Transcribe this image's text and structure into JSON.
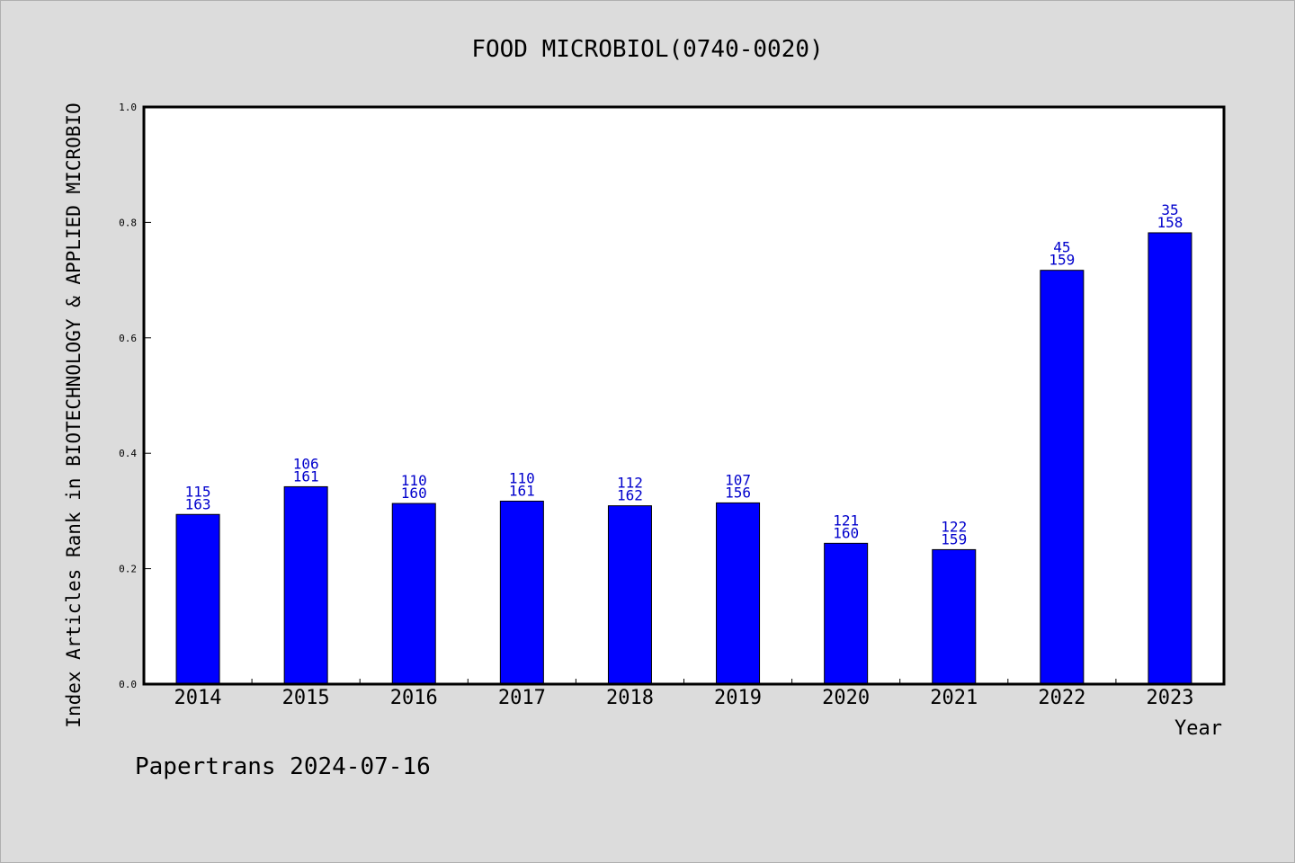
{
  "chart_data": {
    "type": "bar",
    "title": "FOOD MICROBIOL(0740-0020)",
    "xlabel": "Year",
    "ylabel": "Index Articles Rank in BIOTECHNOLOGY & APPLIED MICROBIO",
    "ylim": [
      0,
      1.0
    ],
    "yticks": [
      "0.0",
      "0.2",
      "0.4",
      "0.6",
      "0.8",
      "1.0"
    ],
    "categories": [
      "2014",
      "2015",
      "2016",
      "2017",
      "2018",
      "2019",
      "2020",
      "2021",
      "2022",
      "2023"
    ],
    "values": [
      0.294,
      0.342,
      0.313,
      0.317,
      0.309,
      0.314,
      0.244,
      0.233,
      0.717,
      0.782
    ],
    "ranks": [
      "115",
      "106",
      "110",
      "110",
      "112",
      "107",
      "121",
      "122",
      "45",
      "35"
    ],
    "totals": [
      "163",
      "161",
      "160",
      "161",
      "162",
      "156",
      "160",
      "159",
      "159",
      "158"
    ],
    "bar_color": "#0000ff",
    "label_color": "#0000cc",
    "grid": false,
    "legend": "none"
  },
  "footer": "Papertrans 2024-07-16"
}
